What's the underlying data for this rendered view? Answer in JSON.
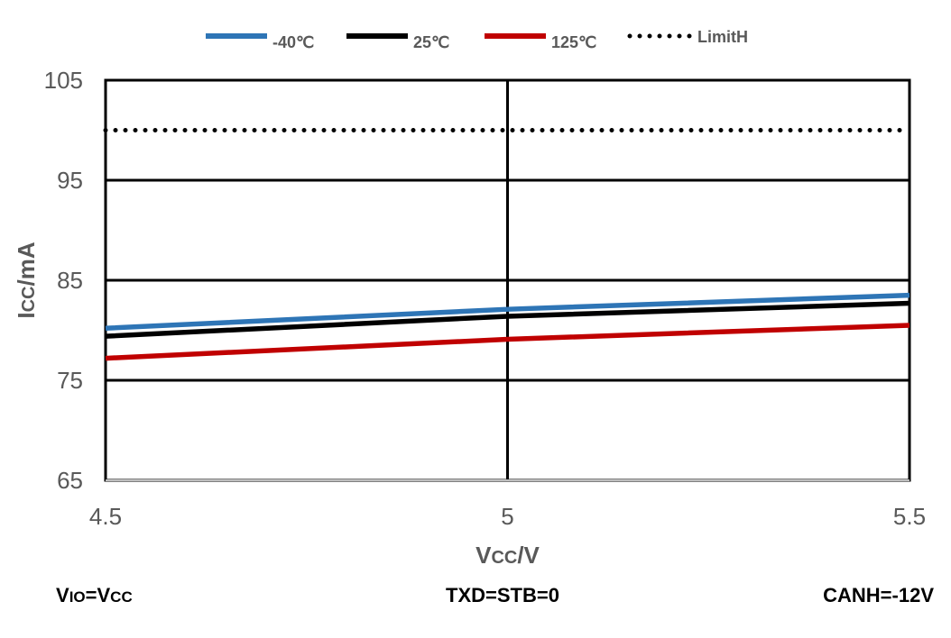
{
  "chart_data": {
    "type": "line",
    "x": [
      4.5,
      5,
      5.5
    ],
    "xlim": [
      4.5,
      5.5
    ],
    "ylim": [
      65,
      105
    ],
    "x_ticks": [
      "4.5",
      "5",
      "5.5"
    ],
    "y_ticks": [
      "65",
      "75",
      "85",
      "95",
      "105"
    ],
    "grid": true,
    "legend_position": "top",
    "xlabel": {
      "main": "V",
      "sub": "CC",
      "suffix": "/V"
    },
    "ylabel": {
      "main": "I",
      "sub": "CC",
      "suffix": "/mA"
    },
    "series": [
      {
        "name": "-40℃",
        "color": "#2E75B6",
        "style": "solid",
        "values": [
          80.2,
          82.1,
          83.5
        ]
      },
      {
        "name": "25℃",
        "color": "#000000",
        "style": "solid",
        "values": [
          79.4,
          81.4,
          82.7
        ]
      },
      {
        "name": "125℃",
        "color": "#C00000",
        "style": "solid",
        "values": [
          77.2,
          79.1,
          80.5
        ]
      },
      {
        "name": "LimitH",
        "color": "#000000",
        "style": "dotted",
        "values": [
          100,
          100,
          100
        ]
      }
    ],
    "annotations": {
      "left": {
        "parts": [
          [
            "V",
            false
          ],
          [
            "IO",
            true
          ],
          [
            "=V",
            false
          ],
          [
            "CC",
            true
          ]
        ]
      },
      "center": "TXD=STB=0",
      "right": "CANH=-12V"
    }
  }
}
